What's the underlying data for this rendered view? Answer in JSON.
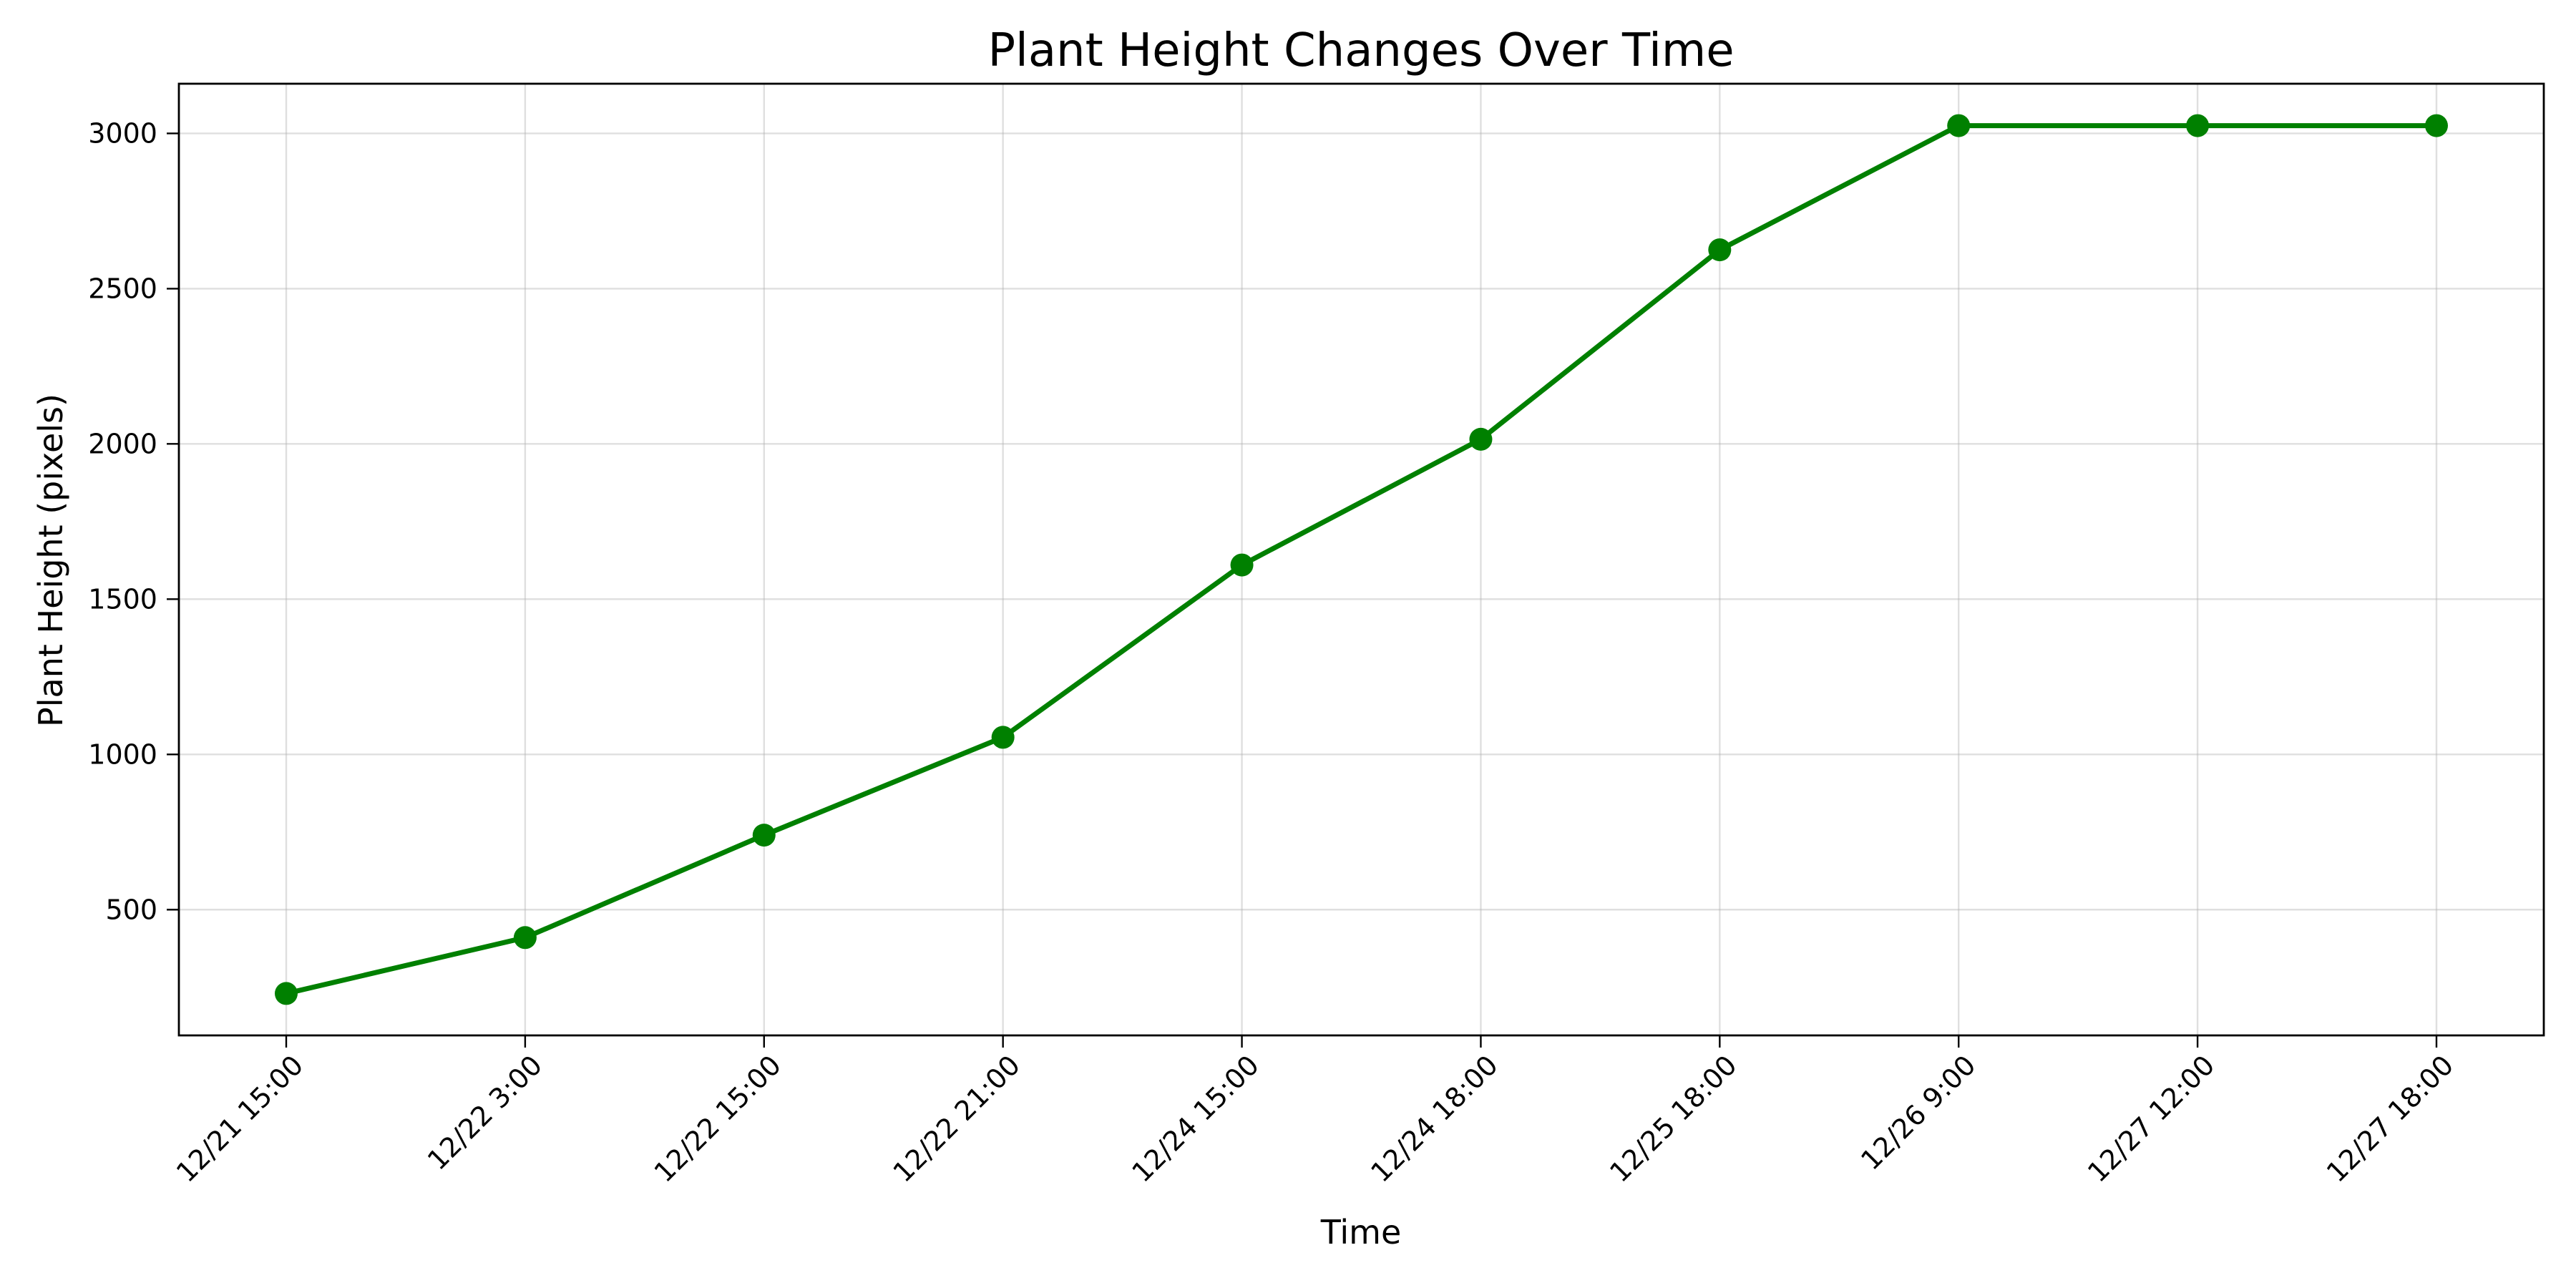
{
  "colors": {
    "series": "#008000",
    "grid": "#b0b0b0",
    "axis": "#000000",
    "background": "#ffffff"
  },
  "chart_data": {
    "type": "line",
    "title": "Plant Height Changes Over Time",
    "xlabel": "Time",
    "ylabel": "Plant Height (pixels)",
    "categories": [
      "12/21 15:00",
      "12/22 3:00",
      "12/22 15:00",
      "12/22 21:00",
      "12/24 15:00",
      "12/24 18:00",
      "12/25 18:00",
      "12/26 9:00",
      "12/27 12:00",
      "12/27 18:00"
    ],
    "series": [
      {
        "values": [
          230,
          410,
          740,
          1055,
          1610,
          2015,
          2625,
          3025,
          3025,
          3025
        ],
        "color": "#008000",
        "marker": "circle"
      }
    ],
    "ylim": [
      95,
      3160
    ],
    "yticks": [
      500,
      1000,
      1500,
      2000,
      2500,
      3000
    ],
    "grid": true,
    "legend": "none"
  }
}
